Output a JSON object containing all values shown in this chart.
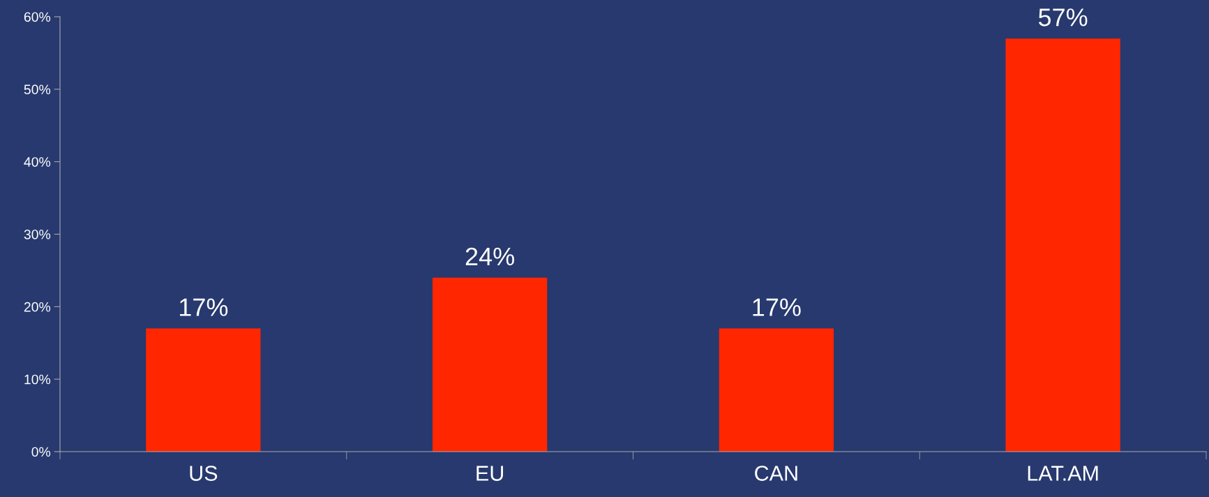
{
  "chart_data": {
    "type": "bar",
    "categories": [
      "US",
      "EU",
      "CAN",
      "LAT.AM"
    ],
    "values": [
      17,
      24,
      17,
      57
    ],
    "color": "#ff2600",
    "value_labels": [
      "17%",
      "24%",
      "17%",
      "57%"
    ],
    "ylim": [
      0,
      60
    ],
    "yticks": [
      {
        "value": 0,
        "label": "0%"
      },
      {
        "value": 10,
        "label": "10%"
      },
      {
        "value": 20,
        "label": "20%"
      },
      {
        "value": 30,
        "label": "30%"
      },
      {
        "value": 40,
        "label": "40%"
      },
      {
        "value": 50,
        "label": "50%"
      },
      {
        "value": 60,
        "label": "60%"
      }
    ],
    "grid": false,
    "legend": false
  }
}
